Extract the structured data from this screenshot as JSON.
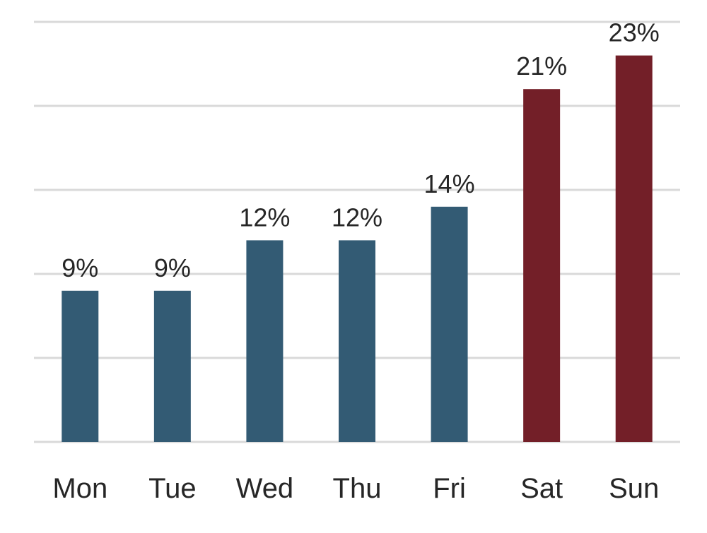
{
  "chart_data": {
    "type": "bar",
    "title": "",
    "xlabel": "",
    "ylabel": "",
    "categories": [
      "Mon",
      "Tue",
      "Wed",
      "Thu",
      "Fri",
      "Sat",
      "Sun"
    ],
    "values": [
      9,
      9,
      12,
      12,
      14,
      21,
      23
    ],
    "value_labels": [
      "9%",
      "9%",
      "12%",
      "12%",
      "14%",
      "21%",
      "23%"
    ],
    "ylim": [
      0,
      25
    ],
    "grid": true,
    "y_axis_labels_shown": false,
    "colors": {
      "weekday": "#335b74",
      "weekend": "#731f28"
    },
    "bar_color_keys": [
      "weekday",
      "weekday",
      "weekday",
      "weekday",
      "weekday",
      "weekend",
      "weekend"
    ]
  }
}
